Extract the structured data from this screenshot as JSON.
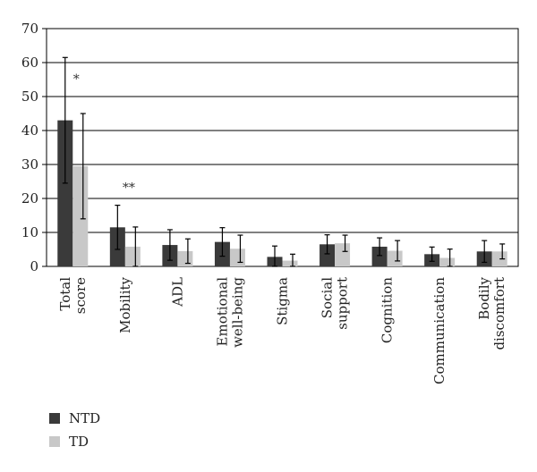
{
  "chart_data": {
    "type": "bar",
    "title": "",
    "xlabel": "",
    "ylabel": "",
    "ylim": [
      0,
      70
    ],
    "yticks": [
      0,
      10,
      20,
      30,
      40,
      50,
      60,
      70
    ],
    "grid": "horizontal",
    "legend_position": "bottom-left",
    "categories": [
      [
        "Total",
        "score"
      ],
      [
        "Mobility"
      ],
      [
        "ADL"
      ],
      [
        "Emotional",
        "well-being"
      ],
      [
        "Stigma"
      ],
      [
        "Social",
        "support"
      ],
      [
        "Cognition"
      ],
      [
        "Communication"
      ],
      [
        "Bodily",
        "discomfort"
      ]
    ],
    "series": [
      {
        "name": "NTD",
        "color": "#3a3a3a",
        "values": [
          43,
          11.5,
          6.3,
          7.2,
          2.8,
          6.5,
          5.8,
          3.6,
          4.4
        ],
        "error": [
          18.5,
          6.5,
          4.5,
          4.2,
          3.2,
          2.8,
          2.6,
          2.1,
          3.2
        ]
      },
      {
        "name": "TD",
        "color": "#c8c8c8",
        "values": [
          29.5,
          5.8,
          4.5,
          5.2,
          1.7,
          6.8,
          4.6,
          2.5,
          4.4
        ],
        "error": [
          15.5,
          5.8,
          3.6,
          4.0,
          1.9,
          2.4,
          3.0,
          2.6,
          2.2
        ]
      }
    ],
    "annotations": [
      {
        "category_index": 0,
        "text": "*",
        "y": 54
      },
      {
        "category_index": 1,
        "text": "**",
        "y": 22
      }
    ]
  }
}
